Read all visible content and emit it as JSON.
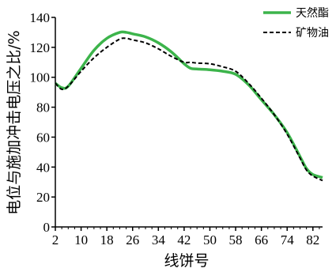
{
  "chart_data": {
    "type": "line",
    "xlabel": "线饼号",
    "ylabel": "电位与施加冲击电压之比/%",
    "xlim": [
      2,
      85
    ],
    "ylim": [
      0,
      140
    ],
    "xticks": [
      2,
      10,
      18,
      26,
      34,
      42,
      50,
      58,
      66,
      74,
      82
    ],
    "yticks": [
      0,
      20,
      40,
      60,
      80,
      100,
      120,
      140
    ],
    "grid": false,
    "legend_position": "top-right",
    "series": [
      {
        "name": "天然酯",
        "color": "#3cb44b",
        "style": "solid",
        "x": [
          2,
          4,
          6,
          10,
          14,
          18,
          22,
          24,
          26,
          30,
          34,
          38,
          42,
          44,
          46,
          50,
          54,
          58,
          62,
          66,
          70,
          74,
          78,
          80,
          82,
          85
        ],
        "y": [
          96,
          93,
          94,
          106,
          118,
          126,
          130,
          130,
          129,
          127,
          123,
          117,
          109,
          106,
          105.5,
          105,
          104,
          102,
          95,
          85,
          75,
          63,
          47,
          39,
          35,
          33
        ]
      },
      {
        "name": "矿物油",
        "color": "#000000",
        "style": "dashed",
        "x": [
          2,
          4,
          6,
          10,
          14,
          18,
          22,
          24,
          26,
          30,
          34,
          38,
          42,
          44,
          46,
          50,
          54,
          58,
          62,
          66,
          70,
          74,
          78,
          80,
          82,
          85
        ],
        "y": [
          96,
          92,
          94,
          104,
          113,
          120,
          125.5,
          126,
          125,
          123,
          119,
          114,
          110,
          110,
          109.5,
          109,
          107,
          104,
          96,
          86,
          75,
          62,
          46,
          38,
          34,
          31
        ]
      }
    ]
  }
}
